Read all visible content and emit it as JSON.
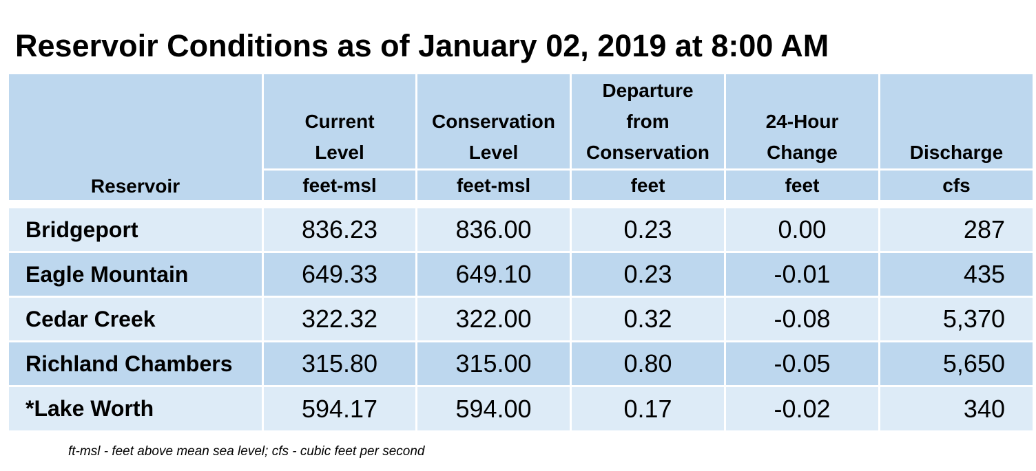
{
  "title": "Reservoir Conditions as of January 02, 2019 at 8:00 AM",
  "table": {
    "reservoir_header": "Reservoir",
    "columns": [
      {
        "label_lines": [
          "Current",
          "Level"
        ],
        "unit": "feet-msl"
      },
      {
        "label_lines": [
          "Conservation",
          "Level"
        ],
        "unit": "feet-msl"
      },
      {
        "label_lines": [
          "Departure",
          "from",
          "Conservation"
        ],
        "unit": "feet"
      },
      {
        "label_lines": [
          "24-Hour",
          "Change"
        ],
        "unit": "feet"
      },
      {
        "label_lines": [
          "Discharge"
        ],
        "unit": "cfs"
      }
    ],
    "rows": [
      {
        "name": "Bridgeport",
        "current": "836.23",
        "conservation": "836.00",
        "departure": "0.23",
        "change": "0.00",
        "discharge": "287"
      },
      {
        "name": "Eagle Mountain",
        "current": "649.33",
        "conservation": "649.10",
        "departure": "0.23",
        "change": "-0.01",
        "discharge": "435"
      },
      {
        "name": "Cedar Creek",
        "current": "322.32",
        "conservation": "322.00",
        "departure": "0.32",
        "change": "-0.08",
        "discharge": "5,370"
      },
      {
        "name": "Richland Chambers",
        "current": "315.80",
        "conservation": "315.00",
        "departure": "0.80",
        "change": "-0.05",
        "discharge": "5,650"
      },
      {
        "name": "*Lake Worth",
        "current": "594.17",
        "conservation": "594.00",
        "departure": "0.17",
        "change": "-0.02",
        "discharge": "340"
      }
    ]
  },
  "footnote": "ft-msl - feet above mean sea level; cfs - cubic feet per second",
  "colors": {
    "header_bg": "#bdd7ee",
    "row_light": "#ddebf7",
    "row_dark": "#bdd7ee"
  }
}
